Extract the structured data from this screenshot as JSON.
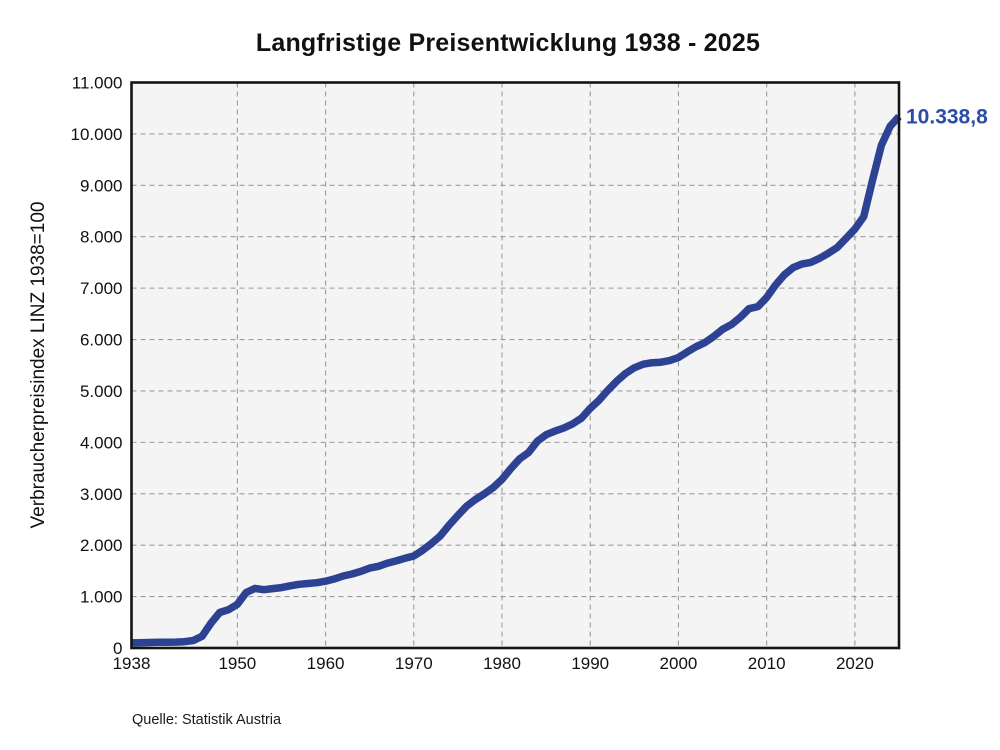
{
  "page": {
    "title": "Langfristige Preisentwicklung 1938 - 2025",
    "source": "Quelle: Statistik Austria"
  },
  "chart_data": {
    "type": "line",
    "title": "Langfristige Preisentwicklung 1938 - 2025",
    "xlabel": "",
    "ylabel": "Verbraucherpreisindex  LINZ  1938=100",
    "source": "Quelle: Statistik Austria",
    "series_name": "Verbraucherpreisindex Linz (1938=100)",
    "end_label": "10.338,8",
    "end_value": 10338.8,
    "xlim": [
      1938,
      2025
    ],
    "ylim": [
      0,
      11000
    ],
    "grid": true,
    "legend": false,
    "line_color": "#2e4294",
    "label_color": "#2b4da8",
    "plot_background": "#f4f4f4",
    "x_ticks": [
      1938,
      1950,
      1960,
      1970,
      1980,
      1990,
      2000,
      2010,
      2020
    ],
    "y_tick_values": [
      0,
      1000,
      2000,
      3000,
      4000,
      5000,
      6000,
      7000,
      8000,
      9000,
      10000,
      11000
    ],
    "y_tick_labels": [
      "0",
      "1.000",
      "2.000",
      "3.000",
      "4.000",
      "5.000",
      "6.000",
      "7.000",
      "8.000",
      "9.000",
      "10.000",
      "11.000"
    ],
    "x": [
      1938,
      1939,
      1940,
      1941,
      1942,
      1943,
      1944,
      1945,
      1946,
      1947,
      1948,
      1949,
      1950,
      1951,
      1952,
      1953,
      1954,
      1955,
      1956,
      1957,
      1958,
      1959,
      1960,
      1961,
      1962,
      1963,
      1964,
      1965,
      1966,
      1967,
      1968,
      1969,
      1970,
      1971,
      1972,
      1973,
      1974,
      1975,
      1976,
      1977,
      1978,
      1979,
      1980,
      1981,
      1982,
      1983,
      1984,
      1985,
      1986,
      1987,
      1988,
      1989,
      1990,
      1991,
      1992,
      1993,
      1994,
      1995,
      1996,
      1997,
      1998,
      1999,
      2000,
      2001,
      2002,
      2003,
      2004,
      2005,
      2006,
      2007,
      2008,
      2009,
      2010,
      2011,
      2012,
      2013,
      2014,
      2015,
      2016,
      2017,
      2018,
      2019,
      2020,
      2021,
      2022,
      2023,
      2024,
      2025
    ],
    "values": [
      100,
      103,
      107,
      110,
      112,
      115,
      122,
      145,
      230,
      480,
      690,
      745,
      850,
      1080,
      1160,
      1135,
      1155,
      1175,
      1210,
      1240,
      1255,
      1270,
      1300,
      1345,
      1400,
      1440,
      1490,
      1555,
      1590,
      1650,
      1695,
      1745,
      1790,
      1900,
      2030,
      2180,
      2390,
      2580,
      2760,
      2890,
      3000,
      3120,
      3280,
      3490,
      3680,
      3800,
      4020,
      4150,
      4220,
      4280,
      4360,
      4470,
      4660,
      4820,
      5015,
      5190,
      5340,
      5450,
      5520,
      5550,
      5560,
      5590,
      5650,
      5760,
      5860,
      5940,
      6060,
      6200,
      6290,
      6430,
      6600,
      6640,
      6820,
      7060,
      7260,
      7400,
      7470,
      7500,
      7580,
      7680,
      7790,
      7970,
      8150,
      8390,
      9100,
      9780,
      10150,
      10338.8
    ]
  }
}
